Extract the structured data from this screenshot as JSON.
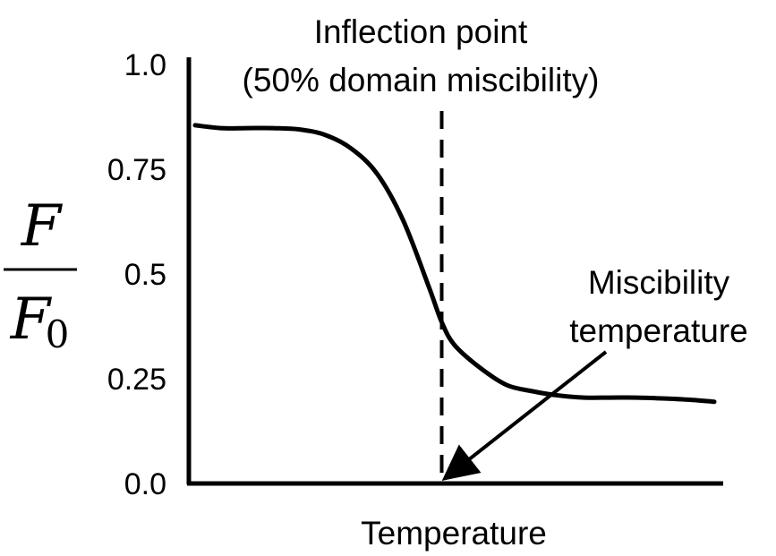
{
  "chart_data": {
    "type": "line",
    "title": "",
    "xlabel": "Temperature",
    "ylabel_numerator": "F",
    "ylabel_denominator": "F",
    "ylabel_denominator_subscript": "0",
    "ylim": [
      0,
      1
    ],
    "xlim": [
      0,
      1
    ],
    "yticks": [
      "0.0",
      "0.25",
      "0.5",
      "0.75",
      "1.0"
    ],
    "ytick_values": [
      0,
      0.25,
      0.5,
      0.75,
      1.0
    ],
    "grid": false,
    "series": [
      {
        "x": [
          0.0,
          0.05,
          0.1,
          0.15,
          0.2,
          0.25,
          0.3,
          0.35,
          0.4,
          0.45,
          0.475,
          0.5,
          0.55,
          0.6,
          0.65,
          0.7,
          0.75,
          0.8,
          0.85,
          0.9,
          0.95,
          1.0
        ],
        "values": [
          0.855,
          0.848,
          0.848,
          0.848,
          0.845,
          0.832,
          0.8,
          0.74,
          0.63,
          0.47,
          0.385,
          0.33,
          0.275,
          0.235,
          0.22,
          0.21,
          0.205,
          0.205,
          0.205,
          0.203,
          0.2,
          0.195
        ]
      }
    ],
    "inflection_x": 0.475,
    "annotations": {
      "inflection_line1": "Inflection point",
      "inflection_line2": "(50% domain miscibility)",
      "miscibility_line1": "Miscibility",
      "miscibility_line2": "temperature"
    },
    "colors": {
      "line": "#000000",
      "axis": "#000000"
    }
  }
}
